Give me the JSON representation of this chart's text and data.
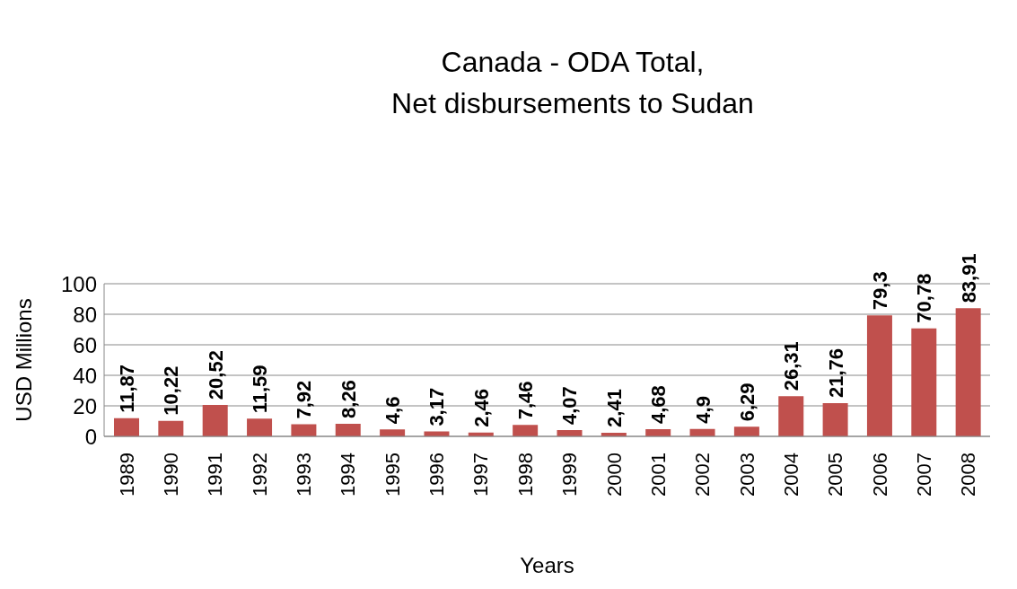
{
  "chart_data": {
    "type": "bar",
    "title": "Canada - ODA Total,\nNet disbursements to Sudan",
    "xlabel": "Years",
    "ylabel": "USD Millions",
    "categories": [
      "1989",
      "1990",
      "1991",
      "1992",
      "1993",
      "1994",
      "1995",
      "1996",
      "1997",
      "1998",
      "1999",
      "2000",
      "2001",
      "2002",
      "2003",
      "2004",
      "2005",
      "2006",
      "2007",
      "2008"
    ],
    "values": [
      11.87,
      10.22,
      20.52,
      11.59,
      7.92,
      8.26,
      4.6,
      3.17,
      2.46,
      7.46,
      4.07,
      2.41,
      4.68,
      4.9,
      6.29,
      26.31,
      21.76,
      79.3,
      70.78,
      83.91
    ],
    "value_labels": [
      "11,87",
      "10,22",
      "20,52",
      "11,59",
      "7,92",
      "8,26",
      "4,6",
      "3,17",
      "2,46",
      "7,46",
      "4,07",
      "2,41",
      "4,68",
      "4,9",
      "6,29",
      "26,31",
      "21,76",
      "79,3",
      "70,78",
      "83,91"
    ],
    "color": "#c0504d",
    "ylim": [
      0,
      100
    ],
    "yticks": [
      0,
      20,
      40,
      60,
      80,
      100
    ],
    "grid": "y"
  }
}
